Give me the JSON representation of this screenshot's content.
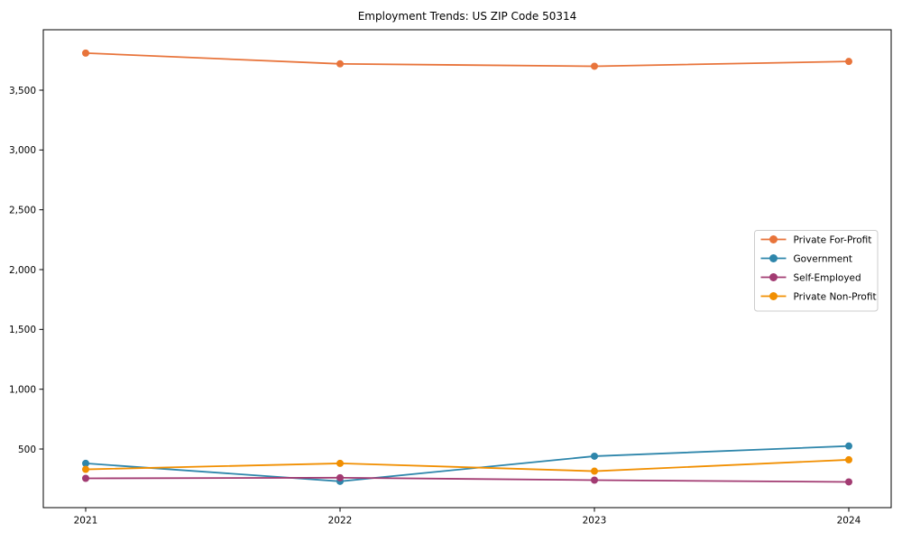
{
  "title": "Employment Trends: US ZIP Code 50314",
  "chart_data": {
    "type": "line",
    "title": "Employment Trends: US ZIP Code 50314",
    "xlabel": "",
    "ylabel": "",
    "x": [
      2021,
      2022,
      2023,
      2024
    ],
    "xtick_labels": [
      "2021",
      "2022",
      "2023",
      "2024"
    ],
    "yticks": [
      500,
      1000,
      1500,
      2000,
      2500,
      3000,
      3500
    ],
    "ytick_labels": [
      "500",
      "1,000",
      "1,500",
      "2,000",
      "2,500",
      "3,000",
      "3,500"
    ],
    "ylim": [
      10,
      4005
    ],
    "grid": false,
    "legend_position": "center-right",
    "marker": "o",
    "series": [
      {
        "name": "Private For-Profit",
        "color": "#E8743B",
        "values": [
          3810,
          3720,
          3700,
          3740
        ]
      },
      {
        "name": "Government",
        "color": "#2E86AB",
        "values": [
          380,
          230,
          440,
          525
        ]
      },
      {
        "name": "Self-Employed",
        "color": "#A23B72",
        "values": [
          255,
          260,
          240,
          225
        ]
      },
      {
        "name": "Private Non-Profit",
        "color": "#F18F01",
        "values": [
          330,
          380,
          315,
          410
        ]
      }
    ]
  }
}
